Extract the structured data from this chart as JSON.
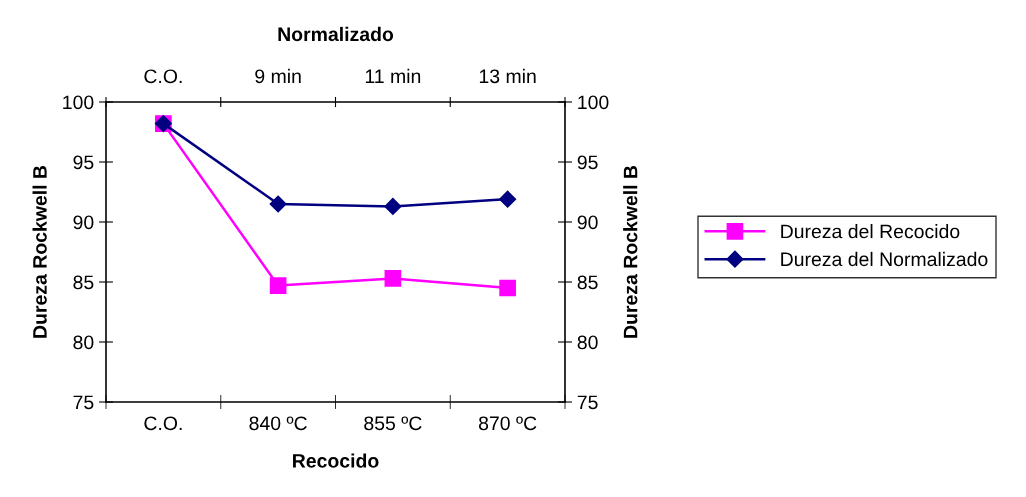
{
  "chart_data": {
    "type": "line",
    "xlabel": "Recocido",
    "x2label": "Normalizado",
    "ylabel": "Dureza Rockwell B",
    "y2label": "Dureza Rockwell B",
    "categories": [
      "C.O.",
      "840 ºC",
      "855 ºC",
      "870 ºC"
    ],
    "annotations": [
      "C.O.",
      "9 min",
      "11 min",
      "13 min"
    ],
    "series": [
      {
        "name": "Dureza del Recocido",
        "color": "#ff00ff",
        "marker": "square",
        "values": [
          98.2,
          84.7,
          85.3,
          84.5
        ]
      },
      {
        "name": "Dureza del Normalizado",
        "color": "#000080",
        "marker": "diamond",
        "values": [
          98.2,
          91.5,
          91.3,
          91.9
        ]
      }
    ],
    "ylim": [
      75,
      100
    ],
    "yticks": [
      75,
      80,
      85,
      90,
      95,
      100
    ],
    "y2lim": [
      75,
      100
    ],
    "y2ticks": [
      75,
      80,
      85,
      90,
      95,
      100
    ],
    "grid": false,
    "legend": "right"
  }
}
